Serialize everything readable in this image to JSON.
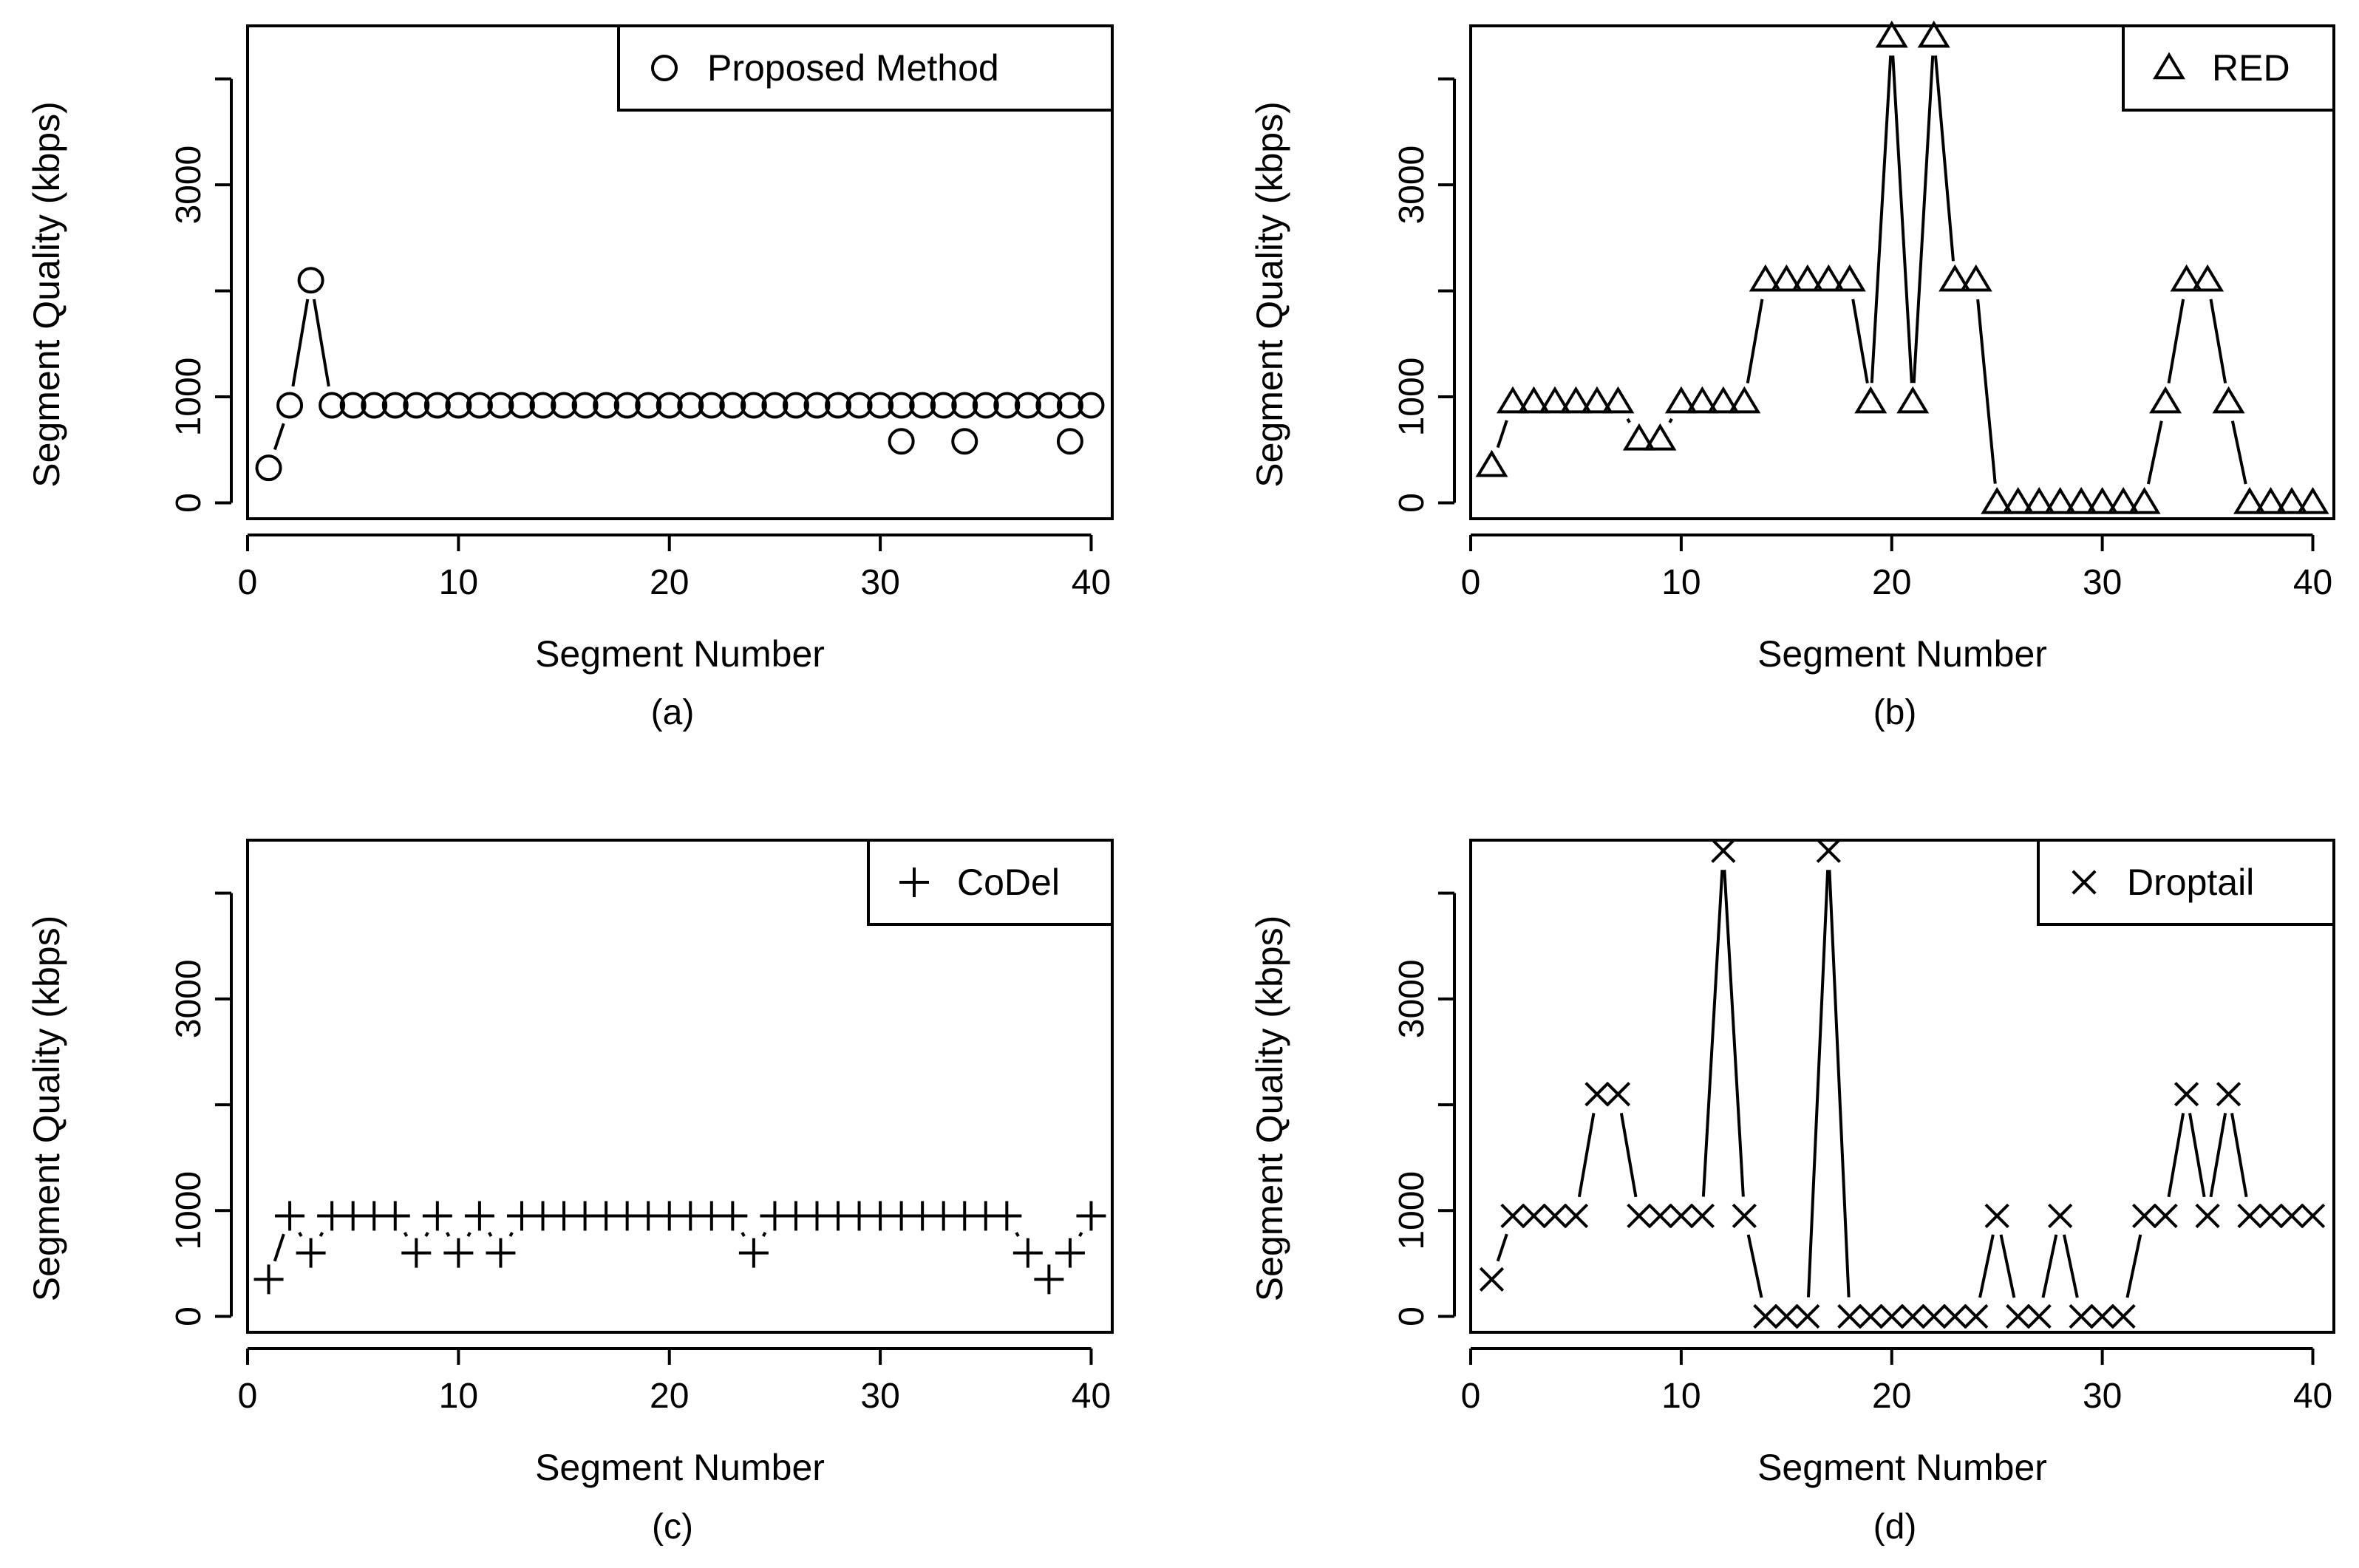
{
  "chart_data": [
    {
      "panel": "(a)",
      "type": "line",
      "legend": "Proposed Method",
      "legend_position": "top-right",
      "marker": "circle",
      "xlabel": "Segment Number",
      "ylabel": "Segment Quality (kbps)",
      "xlim": [
        0,
        41
      ],
      "ylim": [
        -150,
        4500
      ],
      "xticks": [
        0,
        10,
        20,
        30,
        40
      ],
      "yticks": [
        0,
        1000,
        3000
      ],
      "ytick_minor": [
        2000,
        4000
      ],
      "x": [
        1,
        2,
        3,
        4,
        5,
        6,
        7,
        8,
        9,
        10,
        11,
        12,
        13,
        14,
        15,
        16,
        17,
        18,
        19,
        20,
        21,
        22,
        23,
        24,
        25,
        26,
        27,
        28,
        29,
        30,
        31,
        32,
        33,
        34,
        35,
        36,
        37,
        38,
        39,
        40
      ],
      "values": [
        330,
        920,
        2100,
        920,
        920,
        920,
        920,
        920,
        920,
        920,
        920,
        920,
        920,
        920,
        920,
        920,
        920,
        920,
        920,
        920,
        920,
        920,
        920,
        920,
        920,
        920,
        920,
        920,
        920,
        920,
        920,
        920,
        920,
        920,
        920,
        920,
        920,
        920,
        920,
        920
      ],
      "extra_points": {
        "x": [
          31,
          34,
          39
        ],
        "values": [
          580,
          580,
          580
        ]
      }
    },
    {
      "panel": "(b)",
      "type": "line",
      "legend": "RED",
      "legend_position": "top-right",
      "marker": "triangle",
      "xlabel": "Segment Number",
      "ylabel": "Segment Quality (kbps)",
      "xlim": [
        0,
        41
      ],
      "ylim": [
        -150,
        4500
      ],
      "xticks": [
        0,
        10,
        20,
        30,
        40
      ],
      "yticks": [
        0,
        1000,
        3000
      ],
      "ytick_minor": [
        2000,
        4000
      ],
      "x": [
        1,
        2,
        3,
        4,
        5,
        6,
        7,
        8,
        9,
        10,
        11,
        12,
        13,
        14,
        15,
        16,
        17,
        18,
        19,
        20,
        21,
        22,
        23,
        24,
        25,
        26,
        27,
        28,
        29,
        30,
        31,
        32,
        33,
        34,
        35,
        36,
        37,
        38,
        39,
        40
      ],
      "values": [
        350,
        950,
        950,
        950,
        950,
        950,
        950,
        600,
        600,
        950,
        950,
        950,
        950,
        2100,
        2100,
        2100,
        2100,
        2100,
        950,
        4400,
        950,
        4400,
        2100,
        2100,
        0,
        0,
        0,
        0,
        0,
        0,
        0,
        0,
        950,
        2100,
        2100,
        950,
        0,
        0,
        0,
        0
      ]
    },
    {
      "panel": "(c)",
      "type": "line",
      "legend": "CoDel",
      "legend_position": "top-right",
      "marker": "plus",
      "xlabel": "Segment Number",
      "ylabel": "Segment Quality (kbps)",
      "xlim": [
        0,
        41
      ],
      "ylim": [
        -150,
        4500
      ],
      "xticks": [
        0,
        10,
        20,
        30,
        40
      ],
      "yticks": [
        0,
        1000,
        3000
      ],
      "ytick_minor": [
        2000,
        4000
      ],
      "x": [
        1,
        2,
        3,
        4,
        5,
        6,
        7,
        8,
        9,
        10,
        11,
        12,
        13,
        14,
        15,
        16,
        17,
        18,
        19,
        20,
        21,
        22,
        23,
        24,
        25,
        26,
        27,
        28,
        29,
        30,
        31,
        32,
        33,
        34,
        35,
        36,
        37,
        38,
        39,
        40
      ],
      "values": [
        350,
        950,
        600,
        950,
        950,
        950,
        950,
        600,
        950,
        600,
        950,
        600,
        950,
        950,
        950,
        950,
        950,
        950,
        950,
        950,
        950,
        950,
        950,
        600,
        950,
        950,
        950,
        950,
        950,
        950,
        950,
        950,
        950,
        950,
        950,
        950,
        600,
        350,
        600,
        950
      ]
    },
    {
      "panel": "(d)",
      "type": "line",
      "legend": "Droptail",
      "legend_position": "top-right",
      "marker": "x",
      "xlabel": "Segment Number",
      "ylabel": "Segment Quality (kbps)",
      "xlim": [
        0,
        41
      ],
      "ylim": [
        -150,
        4500
      ],
      "xticks": [
        0,
        10,
        20,
        30,
        40
      ],
      "yticks": [
        0,
        1000,
        3000
      ],
      "ytick_minor": [
        2000,
        4000
      ],
      "x": [
        1,
        2,
        3,
        4,
        5,
        6,
        7,
        8,
        9,
        10,
        11,
        12,
        13,
        14,
        15,
        16,
        17,
        18,
        19,
        20,
        21,
        22,
        23,
        24,
        25,
        26,
        27,
        28,
        29,
        30,
        31,
        32,
        33,
        34,
        35,
        36,
        37,
        38,
        39,
        40
      ],
      "values": [
        350,
        950,
        950,
        950,
        950,
        2100,
        2100,
        950,
        950,
        950,
        950,
        4400,
        950,
        0,
        0,
        0,
        4400,
        0,
        0,
        0,
        0,
        0,
        0,
        0,
        950,
        0,
        0,
        950,
        0,
        0,
        0,
        950,
        950,
        2100,
        950,
        2100,
        950,
        950,
        950,
        950
      ]
    }
  ]
}
